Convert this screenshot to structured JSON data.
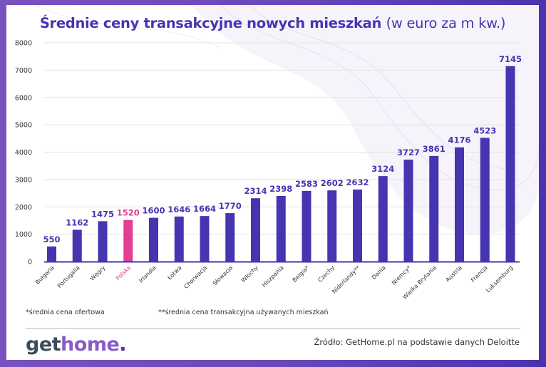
{
  "logo": {
    "part1": "get",
    "part2": "home",
    "part3": "."
  },
  "footnotes": {
    "note1": "*średnia cena ofertowa",
    "note2": "**średnia cena transakcyjna używanych mieszkań"
  },
  "source": "Źródło: GetHome.pl na podstawie danych Deloitte",
  "colors": {
    "bar": "#4535b0",
    "highlight": "#e03f93",
    "label": "#4535b0",
    "grid": "#e3e3e3",
    "axis": "#4535b0",
    "frame": "#6a48bb"
  },
  "chart_data": {
    "type": "bar",
    "title": "Średnie ceny transakcyjne nowych mieszkań (w euro za m kw.)",
    "title_bold": "Średnie ceny transakcyjne nowych mieszkań",
    "title_light": "(w euro za m kw.)",
    "xlabel": "",
    "ylabel": "",
    "ylim": [
      0,
      8000
    ],
    "yticks": [
      0,
      1000,
      2000,
      3000,
      4000,
      5000,
      6000,
      7000,
      8000
    ],
    "grid": true,
    "legend": "none",
    "highlight_category": "Polska",
    "categories": [
      "Bułgaria",
      "Portugalia",
      "Węgry",
      "Polska",
      "Irlandia",
      "Łotwa",
      "Chorwacja",
      "Słowacja",
      "Włochy",
      "Hiszpania",
      "Belgia*",
      "Czechy",
      "Niderlandy**",
      "Dania",
      "Niemcy*",
      "Wielka Brytania",
      "Austria",
      "Francja",
      "Luksemburg"
    ],
    "values": [
      550,
      1162,
      1475,
      1520,
      1600,
      1646,
      1664,
      1770,
      2314,
      2398,
      2583,
      2602,
      2632,
      3124,
      3727,
      3861,
      4176,
      4523,
      7145
    ]
  }
}
